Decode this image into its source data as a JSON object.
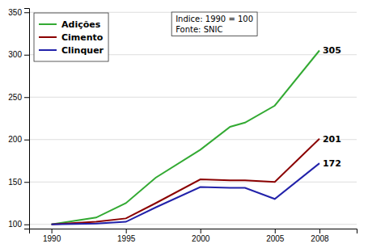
{
  "chart_data": {
    "type": "line",
    "x": [
      1990,
      1993,
      1995,
      1997,
      2000,
      2002,
      2003,
      2005,
      2008
    ],
    "series": [
      {
        "name": "Adições",
        "color": "#33aa33",
        "values": [
          100,
          108,
          125,
          155,
          188,
          215,
          220,
          240,
          305
        ]
      },
      {
        "name": "Cimento",
        "color": "#8b0000",
        "values": [
          100,
          103,
          107,
          125,
          153,
          152,
          152,
          150,
          201
        ]
      },
      {
        "name": "Clinquer",
        "color": "#2222aa",
        "values": [
          100,
          101,
          103,
          120,
          144,
          143,
          143,
          130,
          172
        ]
      }
    ],
    "annotations": [
      {
        "text": "305",
        "y": 305
      },
      {
        "text": "201",
        "y": 201
      },
      {
        "text": "172",
        "y": 172
      },
      {
        "text": "Indice: 1990 = 100\nFonte: SNIC"
      }
    ],
    "xlim": [
      1988.5,
      2010.5
    ],
    "ylim": [
      95,
      355
    ],
    "xticks": [
      1990,
      1995,
      2000,
      2005,
      2008
    ],
    "yticks": [
      100,
      150,
      200,
      250,
      300,
      350
    ],
    "grid": true,
    "legend": "upper left"
  }
}
